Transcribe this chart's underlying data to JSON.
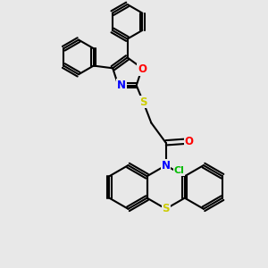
{
  "bg_color": "#e8e8e8",
  "bond_color": "#000000",
  "bond_width": 1.5,
  "atom_colors": {
    "N": "#0000ff",
    "O": "#ff0000",
    "S": "#cccc00",
    "Cl": "#00bb00",
    "C": "#000000"
  },
  "font_size": 8.5,
  "figsize": [
    3.0,
    3.0
  ],
  "dpi": 100
}
